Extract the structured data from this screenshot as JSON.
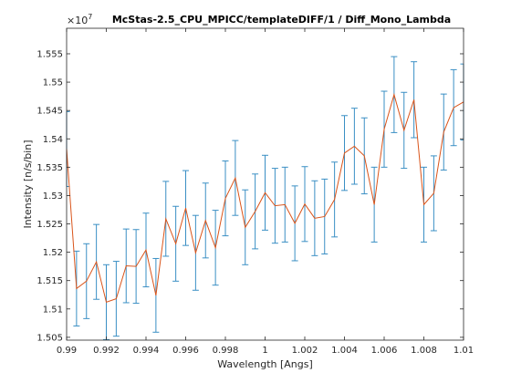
{
  "chart_data": {
    "type": "line",
    "title": "McStas-2.5_CPU_MPICC/templateDIFF/1 / Diff_Mono_Lambda",
    "xlabel": "Wavelength [Angs]",
    "ylabel": "Intensity [n/s/bin]",
    "y_exponent_base": "×10",
    "y_exponent_power": "7",
    "xlim": [
      0.99,
      1.01
    ],
    "ylim": [
      1.5045,
      1.5595
    ],
    "y_scale_factor": 10000000,
    "grid": false,
    "legend": "none",
    "line_color": "#d9541a",
    "errorbar_color": "#3a8fc4",
    "x_ticks": [
      {
        "value": 0.99,
        "label": "0.99"
      },
      {
        "value": 0.992,
        "label": "0.992"
      },
      {
        "value": 0.994,
        "label": "0.994"
      },
      {
        "value": 0.996,
        "label": "0.996"
      },
      {
        "value": 0.998,
        "label": "0.998"
      },
      {
        "value": 1.0,
        "label": "1"
      },
      {
        "value": 1.002,
        "label": "1.002"
      },
      {
        "value": 1.004,
        "label": "1.004"
      },
      {
        "value": 1.006,
        "label": "1.006"
      },
      {
        "value": 1.008,
        "label": "1.008"
      },
      {
        "value": 1.01,
        "label": "1.01"
      }
    ],
    "y_ticks": [
      {
        "value": 1.505,
        "label": "1.505"
      },
      {
        "value": 1.51,
        "label": "1.51"
      },
      {
        "value": 1.515,
        "label": "1.515"
      },
      {
        "value": 1.52,
        "label": "1.52"
      },
      {
        "value": 1.525,
        "label": "1.525"
      },
      {
        "value": 1.53,
        "label": "1.53"
      },
      {
        "value": 1.535,
        "label": "1.535"
      },
      {
        "value": 1.54,
        "label": "1.54"
      },
      {
        "value": 1.545,
        "label": "1.545"
      },
      {
        "value": 1.55,
        "label": "1.55"
      },
      {
        "value": 1.555,
        "label": "1.555"
      }
    ],
    "series": [
      {
        "x": [
          0.99,
          0.9905,
          0.991,
          0.9915,
          0.992,
          0.9925,
          0.993,
          0.9935,
          0.994,
          0.9945,
          0.995,
          0.9955,
          0.996,
          0.9965,
          0.997,
          0.9975,
          0.998,
          0.9985,
          0.999,
          0.9995,
          1.0,
          1.0005,
          1.001,
          1.0015,
          1.002,
          1.0025,
          1.003,
          1.0035,
          1.004,
          1.0045,
          1.005,
          1.0055,
          1.006,
          1.0065,
          1.007,
          1.0075,
          1.008,
          1.0085,
          1.009,
          1.0095,
          1.01
        ],
        "y": [
          1.5382,
          1.5136,
          1.5149,
          1.5183,
          1.5112,
          1.5118,
          1.5176,
          1.5175,
          1.5204,
          1.5124,
          1.5259,
          1.5215,
          1.5278,
          1.5199,
          1.5256,
          1.5208,
          1.5295,
          1.5331,
          1.5244,
          1.5272,
          1.5305,
          1.5282,
          1.5284,
          1.5251,
          1.5285,
          1.526,
          1.5263,
          1.5293,
          1.5375,
          1.5387,
          1.537,
          1.5284,
          1.5417,
          1.5478,
          1.5415,
          1.5469,
          1.5284,
          1.5304,
          1.5412,
          1.5455,
          1.5465
        ],
        "err": [
          0.0066,
          0.0066,
          0.0066,
          0.0066,
          0.0066,
          0.0066,
          0.0065,
          0.0065,
          0.0065,
          0.0065,
          0.0066,
          0.0066,
          0.0066,
          0.0066,
          0.0066,
          0.0066,
          0.0066,
          0.0066,
          0.0066,
          0.0066,
          0.0066,
          0.0066,
          0.0066,
          0.0066,
          0.0066,
          0.0066,
          0.0066,
          0.0066,
          0.0066,
          0.0067,
          0.0067,
          0.0066,
          0.0067,
          0.0067,
          0.0067,
          0.0067,
          0.0066,
          0.0066,
          0.0067,
          0.0067,
          0.0067
        ]
      }
    ]
  }
}
